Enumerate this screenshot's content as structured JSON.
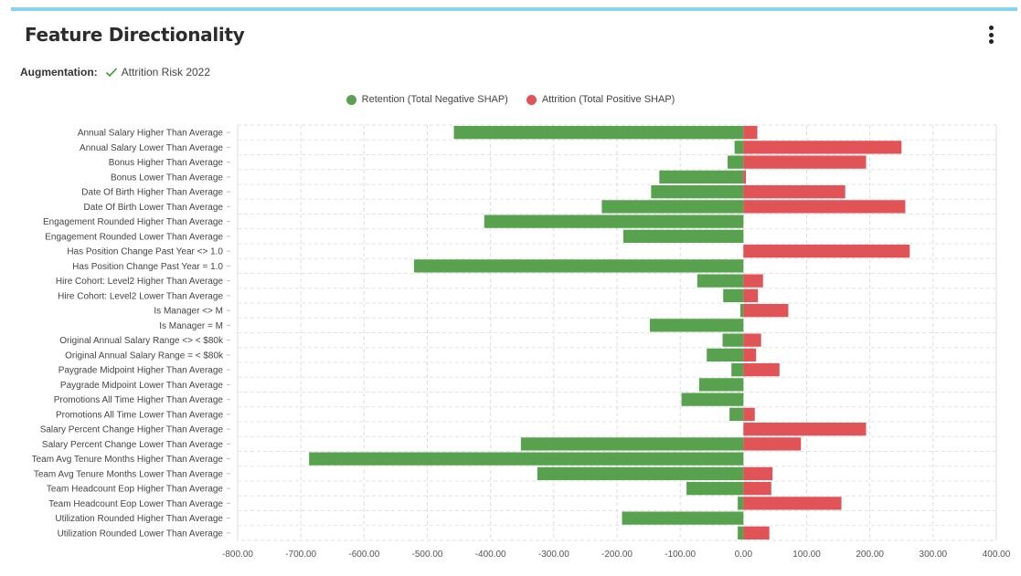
{
  "header": {
    "title": "Feature Directionality"
  },
  "augmentation": {
    "label": "Augmentation:",
    "value": "Attrition Risk 2022"
  },
  "legend": [
    {
      "name": "Retention (Total Negative SHAP)",
      "color": "#58a14e"
    },
    {
      "name": "Attrition (Total Positive SHAP)",
      "color": "#e05356"
    }
  ],
  "chart_data": {
    "type": "bar",
    "orientation": "horizontal",
    "stacked": true,
    "grid": true,
    "legend_position": "top-center",
    "xlim": [
      -800,
      400
    ],
    "xticks": [
      -800,
      -700,
      -600,
      -500,
      -400,
      -300,
      -200,
      -100,
      0,
      100,
      200,
      300,
      400
    ],
    "xtick_labels": [
      "-800.00",
      "-700.00",
      "-600.00",
      "-500.00",
      "-400.00",
      "-300.00",
      "-200.00",
      "-100.00",
      "0.00",
      "100.00",
      "200.00",
      "300.00",
      "400.00"
    ],
    "categories": [
      "Annual Salary Higher Than Average",
      "Annual Salary Lower Than Average",
      "Bonus Higher Than Average",
      "Bonus Lower Than Average",
      "Date Of Birth Higher Than Average",
      "Date Of Birth Lower Than Average",
      "Engagement Rounded Higher Than Average",
      "Engagement Rounded Lower Than Average",
      "Has Position Change Past Year <> 1.0",
      "Has Position Change Past Year = 1.0",
      "Hire Cohort: Level2 Higher Than Average",
      "Hire Cohort: Level2 Lower Than Average",
      "Is Manager <> M",
      "Is Manager = M",
      "Original Annual Salary Range <> < $80k",
      "Original Annual Salary Range = < $80k",
      "Paygrade Midpoint Higher Than Average",
      "Paygrade Midpoint Lower Than Average",
      "Promotions All Time Higher Than Average",
      "Promotions All Time Lower Than Average",
      "Salary Percent Change Higher Than Average",
      "Salary Percent Change Lower Than Average",
      "Team Avg Tenure Months Higher Than Average",
      "Team Avg Tenure Months Lower Than Average",
      "Team Headcount Eop Higher Than Average",
      "Team Headcount Eop Lower Than Average",
      "Utilization Rounded Higher Than Average",
      "Utilization Rounded Lower Than Average"
    ],
    "series": [
      {
        "name": "Retention (Total Negative SHAP)",
        "color": "#58a14e",
        "values": [
          -458,
          -14,
          -25,
          -133,
          -146,
          -224,
          -410,
          -190,
          0,
          -521,
          -73,
          -32,
          -5,
          -148,
          -33,
          -58,
          -19,
          -70,
          -98,
          -22,
          0,
          -352,
          -687,
          -326,
          -90,
          -9,
          -192,
          -9
        ]
      },
      {
        "name": "Attrition (Total Positive SHAP)",
        "color": "#e05356",
        "values": [
          22,
          250,
          194,
          4,
          161,
          256,
          0,
          0,
          263,
          0,
          31,
          23,
          71,
          0,
          28,
          20,
          57,
          0,
          0,
          18,
          194,
          91,
          0,
          46,
          44,
          155,
          0,
          41
        ]
      }
    ]
  }
}
